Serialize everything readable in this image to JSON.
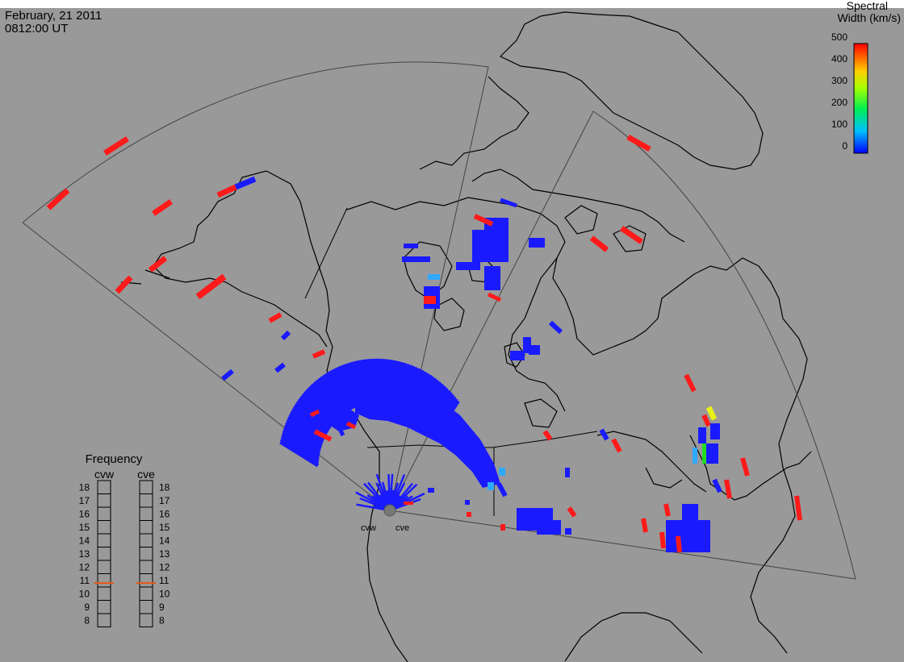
{
  "header": {
    "date": "February, 21 2011",
    "time": "0812:00 UT"
  },
  "colorbar": {
    "title_line1": "Spectral",
    "title_line2": "Width (km/s)",
    "ticks": [
      "500",
      "400",
      "300",
      "200",
      "100",
      "0"
    ],
    "min": 0,
    "max": 500
  },
  "radars": [
    {
      "name": "cvw"
    },
    {
      "name": "cve"
    }
  ],
  "frequency_panel": {
    "title": "Frequency",
    "columns": [
      "cvw",
      "cve"
    ],
    "scale": [
      "18",
      "17",
      "16",
      "15",
      "14",
      "13",
      "12",
      "11",
      "10",
      "9",
      "8"
    ],
    "cvw_value": 10.8,
    "cve_value": 10.8,
    "marker_color": "#e05a1a"
  },
  "colors": {
    "background": "#999999",
    "scatter_blue": "#1a1aff",
    "scatter_red": "#ff1a1a",
    "scatter_light_blue": "#2fa8ff",
    "scatter_yellow": "#e8f01a",
    "scatter_green": "#22dd22"
  }
}
